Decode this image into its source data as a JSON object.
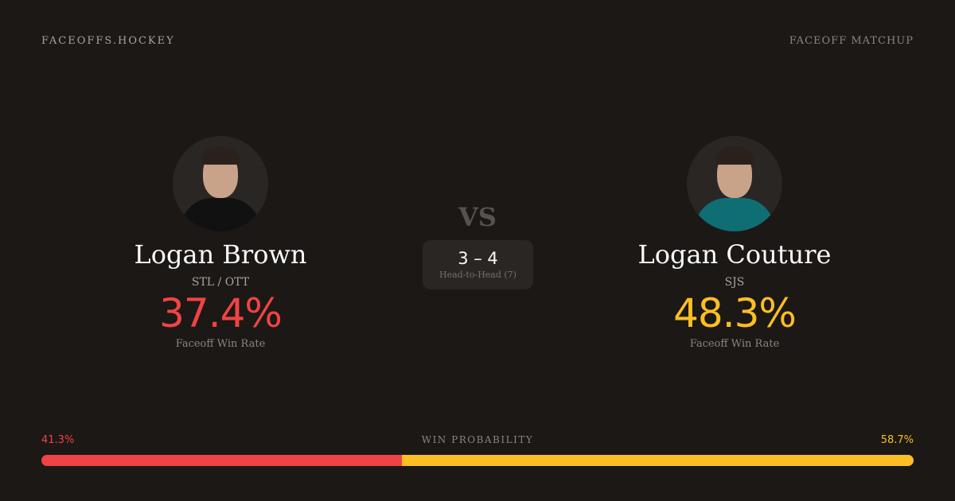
{
  "header": {
    "brand": "FACEOFFS.HOCKEY",
    "page_tag": "FACEOFF MATCHUP"
  },
  "players": [
    {
      "name": "Logan Brown",
      "team": "STL / OTT",
      "win_rate": "37.4%",
      "win_rate_label": "Faceoff Win Rate",
      "color": "#ef4444",
      "jersey_color": "#111111"
    },
    {
      "name": "Logan Couture",
      "team": "SJS",
      "win_rate": "48.3%",
      "win_rate_label": "Faceoff Win Rate",
      "color": "#fbbf24",
      "jersey_color": "#0f6e74"
    }
  ],
  "vs_label": "VS",
  "head_to_head": {
    "score": "3 – 4",
    "label": "Head-to-Head (7)"
  },
  "win_probability": {
    "title": "WIN PROBABILITY",
    "left": "41.3%",
    "right": "58.7%",
    "left_value": 41.3,
    "right_value": 58.7
  }
}
